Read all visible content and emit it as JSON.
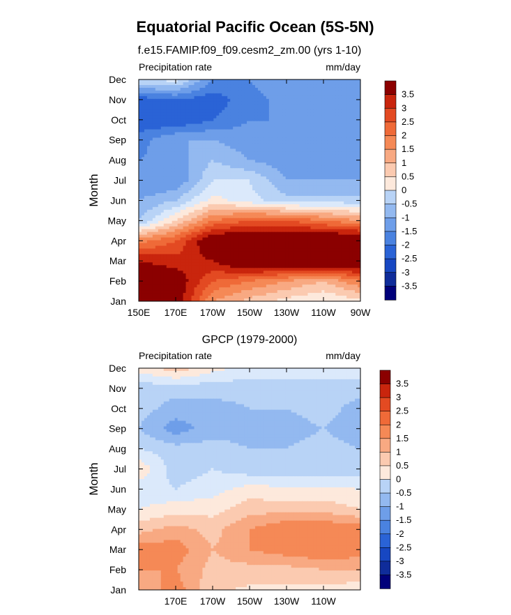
{
  "title": "Equatorial Pacific Ocean (5S-5N)",
  "chart_data": [
    {
      "type": "heatmap",
      "subtitle": "f.e15.FAMIP.f09_f09.cesm2_zm.00 (yrs 1-10)",
      "left_label": "Precipitation rate",
      "right_label": "mm/day",
      "ylabel": "Month",
      "x_ticks": [
        "150E",
        "170E",
        "170W",
        "150W",
        "130W",
        "110W",
        "90W"
      ],
      "x_tick_values": [
        150,
        170,
        190,
        210,
        230,
        250,
        270
      ],
      "y_ticks": [
        "Jan",
        "Feb",
        "Mar",
        "Apr",
        "May",
        "Jun",
        "Jul",
        "Aug",
        "Sep",
        "Oct",
        "Nov",
        "Dec"
      ],
      "xlim": [
        150,
        270
      ],
      "ylim": [
        1,
        12
      ],
      "z_range": [
        -3.5,
        3.5
      ],
      "colorbar_labels": [
        "3.5",
        "3",
        "2.5",
        "2",
        "1.5",
        "1",
        "0.5",
        "0",
        "-0.5",
        "-1",
        "-1.5",
        "-2",
        "-2.5",
        "-3",
        "-3.5"
      ],
      "grid": false,
      "x": [
        150,
        170,
        190,
        210,
        230,
        250,
        270
      ],
      "z": [
        [
          4.2,
          4.0,
          1.5,
          0.8,
          0.3,
          0.0,
          0.3
        ],
        [
          4.2,
          4.0,
          2.5,
          2.0,
          1.5,
          1.0,
          2.0
        ],
        [
          3.5,
          3.2,
          3.5,
          4.5,
          4.5,
          4.5,
          4.5
        ],
        [
          1.8,
          2.5,
          4.2,
          4.5,
          4.5,
          4.5,
          4.5
        ],
        [
          -1.0,
          0.5,
          2.0,
          2.5,
          2.5,
          2.0,
          1.5
        ],
        [
          -1.5,
          -1.0,
          0.2,
          -0.3,
          -0.8,
          -0.8,
          -0.8
        ],
        [
          -2.0,
          -2.0,
          -0.5,
          -0.5,
          -1.5,
          -1.5,
          -1.5
        ],
        [
          -2.0,
          -1.8,
          -1.0,
          -1.5,
          -1.8,
          -2.0,
          -2.0
        ],
        [
          -2.2,
          -1.5,
          -1.5,
          -1.8,
          -2.0,
          -1.8,
          -2.0
        ],
        [
          -3.0,
          -3.0,
          -2.5,
          -2.0,
          -2.0,
          -1.8,
          -2.0
        ],
        [
          -2.8,
          -2.5,
          -2.8,
          -2.2,
          -1.8,
          -1.5,
          -2.0
        ],
        [
          -0.5,
          -0.3,
          -2.0,
          -2.0,
          -1.5,
          -1.5,
          -1.8
        ]
      ]
    },
    {
      "type": "heatmap",
      "subtitle": "GPCP (1979-2000)",
      "left_label": "Precipitation rate",
      "right_label": "mm/day",
      "ylabel": "Month",
      "x_ticks": [
        "170E",
        "170W",
        "150W",
        "130W",
        "110W"
      ],
      "x_tick_values": [
        170,
        190,
        210,
        230,
        250
      ],
      "y_ticks": [
        "Jan",
        "Feb",
        "Mar",
        "Apr",
        "May",
        "Jun",
        "Jul",
        "Aug",
        "Sep",
        "Oct",
        "Nov",
        "Dec"
      ],
      "xlim": [
        150,
        270
      ],
      "ylim": [
        1,
        12
      ],
      "z_range": [
        -3.5,
        3.5
      ],
      "colorbar_labels": [
        "3.5",
        "3",
        "2.5",
        "2",
        "1.5",
        "1",
        "0.5",
        "0",
        "-0.5",
        "-1",
        "-1.5",
        "-2",
        "-2.5",
        "-3",
        "-3.5"
      ],
      "grid": false,
      "x": [
        150,
        170,
        190,
        210,
        230,
        250,
        270
      ],
      "z": [
        [
          1.0,
          1.8,
          0.6,
          0.4,
          0.4,
          0.3,
          0.2
        ],
        [
          1.5,
          1.5,
          0.8,
          0.8,
          0.8,
          1.0,
          1.0
        ],
        [
          1.8,
          1.8,
          1.0,
          1.5,
          1.8,
          2.0,
          1.8
        ],
        [
          0.8,
          1.2,
          0.8,
          1.5,
          2.0,
          2.0,
          1.8
        ],
        [
          0.0,
          0.3,
          0.3,
          0.8,
          0.8,
          0.8,
          0.5
        ],
        [
          -0.3,
          -0.5,
          -0.2,
          0.2,
          0.1,
          0.1,
          0.0
        ],
        [
          0.4,
          -0.8,
          -0.5,
          -0.8,
          -0.8,
          -0.8,
          -0.8
        ],
        [
          -0.5,
          -0.8,
          -0.8,
          -1.0,
          -1.0,
          -0.8,
          -1.0
        ],
        [
          -1.0,
          -1.8,
          -1.2,
          -1.2,
          -1.2,
          -1.0,
          -1.3
        ],
        [
          -0.8,
          -1.2,
          -1.2,
          -1.0,
          -1.0,
          -0.8,
          -1.2
        ],
        [
          -0.8,
          -0.8,
          -0.8,
          -0.8,
          -0.8,
          -0.8,
          -0.8
        ],
        [
          0.2,
          0.8,
          0.2,
          -0.2,
          -0.2,
          -0.2,
          -0.2
        ]
      ]
    }
  ],
  "colors": {
    "pos": [
      "#fde9dc",
      "#fbcab0",
      "#f8a982",
      "#f58956",
      "#ef6a38",
      "#e34a22",
      "#c9250d",
      "#8b0000"
    ],
    "neg": [
      "#dbe9fb",
      "#b8d3f6",
      "#93b9f0",
      "#6e9ee9",
      "#4a82e0",
      "#2a63d6",
      "#1747c2",
      "#0f2c9a",
      "#00007a"
    ],
    "frame": "#000000"
  }
}
